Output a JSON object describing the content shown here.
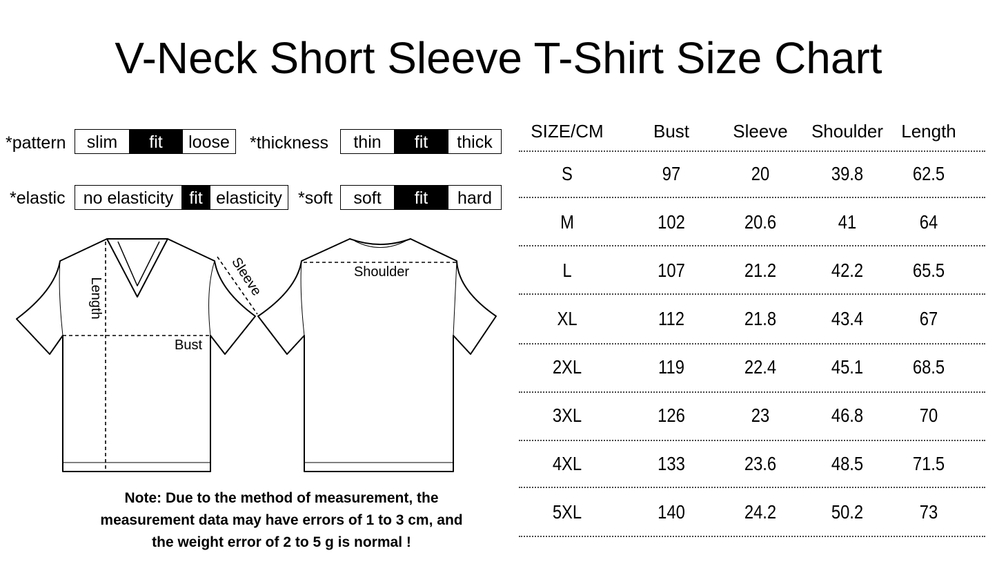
{
  "title": "V-Neck Short Sleeve T-Shirt Size Chart",
  "attributes": [
    {
      "label": "*pattern",
      "options": [
        "slim",
        "fit",
        "loose"
      ],
      "selected": "fit"
    },
    {
      "label": "*thickness",
      "options": [
        "thin",
        "fit",
        "thick"
      ],
      "selected": "fit"
    },
    {
      "label": "*elastic",
      "options": [
        "no elasticity",
        "fit",
        "elasticity"
      ],
      "selected": "fit"
    },
    {
      "label": "*soft",
      "options": [
        "soft",
        "fit",
        "hard"
      ],
      "selected": "fit"
    }
  ],
  "diagram": {
    "length": "Length",
    "bust": "Bust",
    "sleeve": "Sleeve",
    "shoulder": "Shoulder"
  },
  "note": [
    "Note: Due to the method of measurement, the",
    "measurement data may have errors of 1 to 3 cm, and",
    "the weight error of 2 to 5 g is normal !"
  ],
  "chart_data": {
    "type": "table",
    "columns": [
      "SIZE/CM",
      "Bust",
      "Sleeve",
      "Shoulder",
      "Length"
    ],
    "rows": [
      [
        "S",
        "97",
        "20",
        "39.8",
        "62.5"
      ],
      [
        "M",
        "102",
        "20.6",
        "41",
        "64"
      ],
      [
        "L",
        "107",
        "21.2",
        "42.2",
        "65.5"
      ],
      [
        "XL",
        "112",
        "21.8",
        "43.4",
        "67"
      ],
      [
        "2XL",
        "119",
        "22.4",
        "45.1",
        "68.5"
      ],
      [
        "3XL",
        "126",
        "23",
        "46.8",
        "70"
      ],
      [
        "4XL",
        "133",
        "23.6",
        "48.5",
        "71.5"
      ],
      [
        "5XL",
        "140",
        "24.2",
        "50.2",
        "73"
      ]
    ]
  }
}
